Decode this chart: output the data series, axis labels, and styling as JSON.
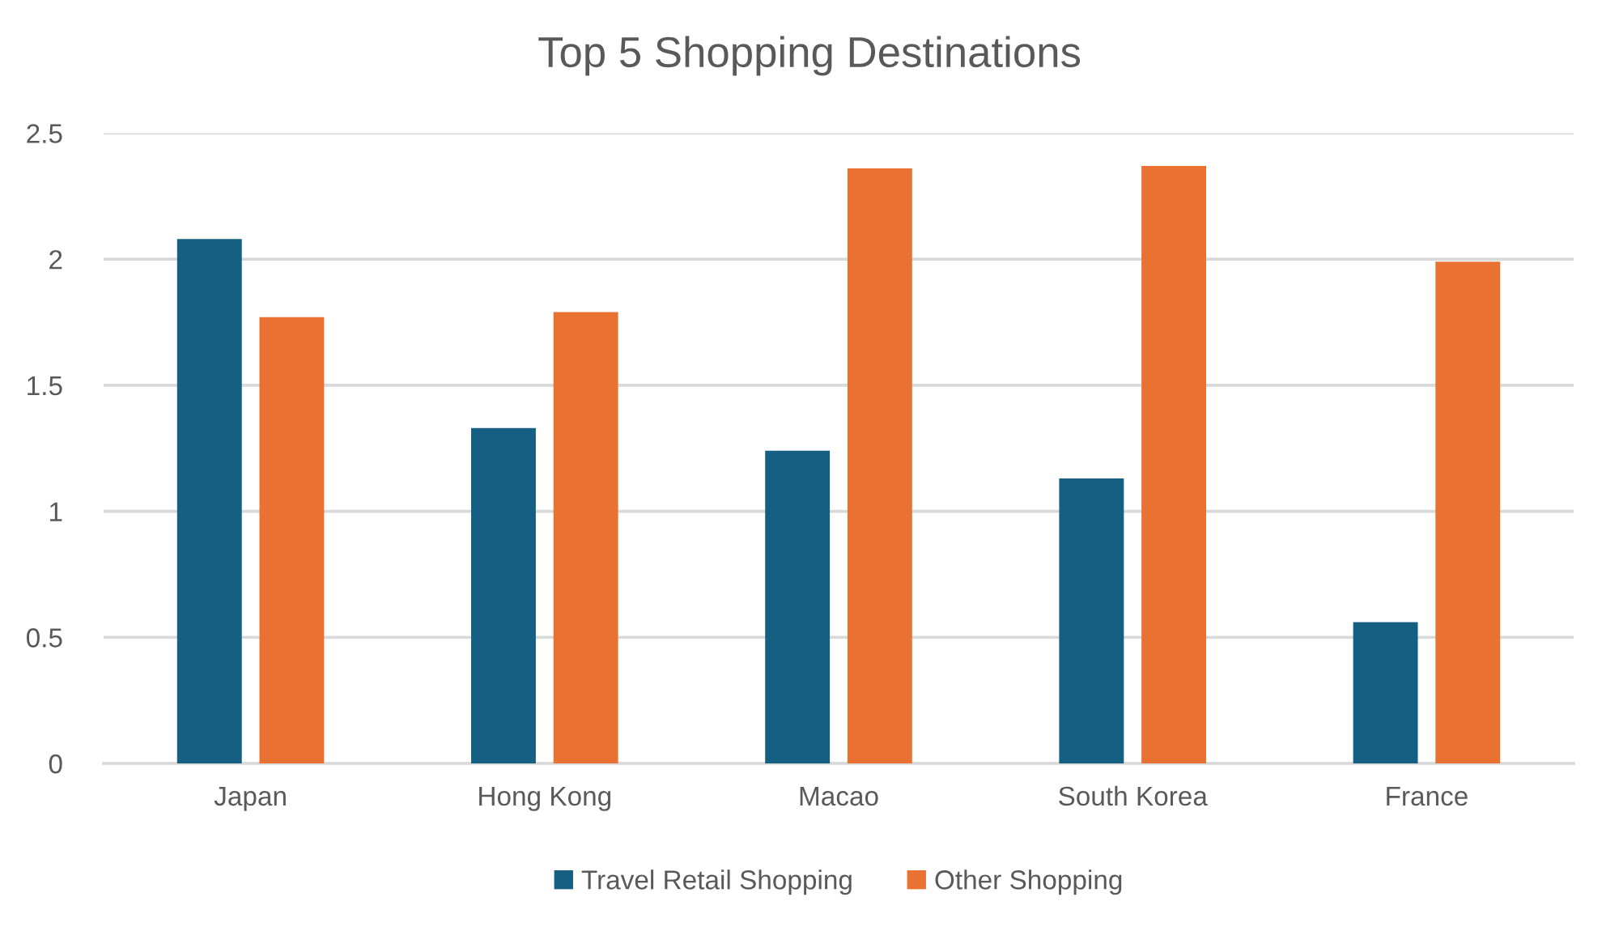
{
  "chart_data": {
    "type": "bar",
    "title": "Top 5 Shopping Destinations",
    "categories": [
      "Japan",
      "Hong Kong",
      "Macao",
      "South Korea",
      "France"
    ],
    "series": [
      {
        "name": "Travel Retail Shopping",
        "color": "#156082",
        "values": [
          2.08,
          1.33,
          1.24,
          1.13,
          0.56
        ]
      },
      {
        "name": "Other Shopping",
        "color": "#e97132",
        "values": [
          1.77,
          1.79,
          2.36,
          2.37,
          1.99
        ]
      }
    ],
    "ylim": [
      0,
      2.5
    ],
    "yticks": [
      0,
      {
        "value": 0.5,
        "label": "0.5"
      },
      1,
      {
        "value": 1.5,
        "label": "1.5"
      },
      2,
      {
        "value": 2.5,
        "label": "2.5"
      }
    ],
    "grid": "y",
    "legend": "bottom"
  }
}
